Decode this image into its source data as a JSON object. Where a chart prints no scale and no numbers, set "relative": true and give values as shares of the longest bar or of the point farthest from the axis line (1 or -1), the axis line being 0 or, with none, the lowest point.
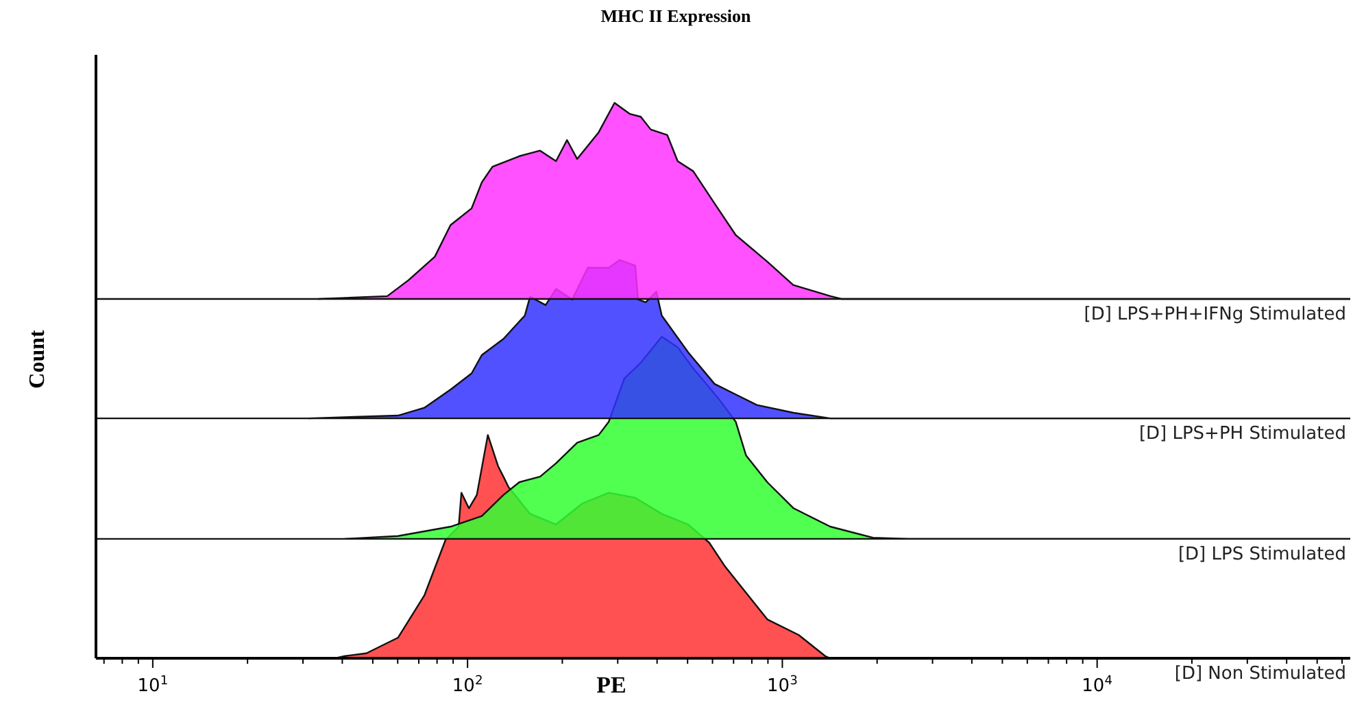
{
  "chart_data": {
    "type": "area",
    "title": "MHC II Expression",
    "xlabel": "PE",
    "ylabel": "Count",
    "relative": true,
    "log": "x",
    "grid": false,
    "legend": false,
    "marker": "none",
    "xlim": [
      6.6,
      63700
    ],
    "ref_lines": [
      {
        "axis": "y",
        "value": 0.215
      },
      {
        "axis": "y",
        "value": 0.432
      },
      {
        "axis": "y",
        "value": 0.647
      }
    ],
    "xticks": [
      {
        "value": 7,
        "label": null
      },
      {
        "value": 8,
        "label": null
      },
      {
        "value": 9,
        "label": null
      },
      {
        "value": 10,
        "label": "10$^{1}$"
      },
      {
        "value": 20,
        "label": null
      },
      {
        "value": 30,
        "label": null
      },
      {
        "value": 40,
        "label": null
      },
      {
        "value": 50,
        "label": null
      },
      {
        "value": 60,
        "label": null
      },
      {
        "value": 70,
        "label": null
      },
      {
        "value": 80,
        "label": null
      },
      {
        "value": 90,
        "label": null
      },
      {
        "value": 100,
        "label": "10$^{2}$"
      },
      {
        "value": 200,
        "label": null
      },
      {
        "value": 300,
        "label": null
      },
      {
        "value": 400,
        "label": null
      },
      {
        "value": 500,
        "label": null
      },
      {
        "value": 600,
        "label": null
      },
      {
        "value": 700,
        "label": null
      },
      {
        "value": 800,
        "label": null
      },
      {
        "value": 900,
        "label": null
      },
      {
        "value": 1000,
        "label": "10$^{3}$"
      },
      {
        "value": 2000,
        "label": null
      },
      {
        "value": 3000,
        "label": null
      },
      {
        "value": 4000,
        "label": null
      },
      {
        "value": 5000,
        "label": null
      },
      {
        "value": 6000,
        "label": null
      },
      {
        "value": 7000,
        "label": null
      },
      {
        "value": 8000,
        "label": null
      },
      {
        "value": 9000,
        "label": null
      },
      {
        "value": 10000,
        "label": "10$^{4}$"
      },
      {
        "value": 20000,
        "label": null
      },
      {
        "value": 30000,
        "label": null
      },
      {
        "value": 40000,
        "label": null
      },
      {
        "value": 50000,
        "label": null
      },
      {
        "value": 60000,
        "label": null
      }
    ],
    "series": [
      {
        "name": "[D] Non Stimulated",
        "color": "#ff3333",
        "x": [
          6.6,
          38,
          40.8,
          47.7,
          60.1,
          72.9,
          85.1,
          93.7,
          95.6,
          101,
          107,
          116,
          125,
          130,
          135,
          158,
          191,
          232,
          281,
          341,
          414,
          502,
          586,
          658,
          767,
          896,
          1127,
          1368,
          1420,
          63700
        ],
        "values": [
          0,
          0,
          0.004,
          0.009,
          0.037,
          0.113,
          0.213,
          0.237,
          0.298,
          0.27,
          0.294,
          0.402,
          0.346,
          0.327,
          0.308,
          0.26,
          0.241,
          0.279,
          0.298,
          0.289,
          0.26,
          0.241,
          0.208,
          0.165,
          0.118,
          0.07,
          0.042,
          0.004,
          0,
          0
        ]
      },
      {
        "name": "[D] LPS Stimulated",
        "color": "#33ff33",
        "x": [
          40.8,
          60.1,
          88.4,
          111,
          130,
          146,
          170,
          191,
          223,
          261,
          281,
          315,
          355,
          414,
          465,
          521,
          632,
          711,
          767,
          896,
          1086,
          1420,
          1941,
          2518,
          63700
        ],
        "values": [
          0.215,
          0.22,
          0.237,
          0.256,
          0.294,
          0.317,
          0.327,
          0.351,
          0.388,
          0.402,
          0.426,
          0.504,
          0.532,
          0.579,
          0.56,
          0.522,
          0.465,
          0.426,
          0.365,
          0.317,
          0.27,
          0.237,
          0.217,
          0.215,
          0.215
        ]
      },
      {
        "name": "[D] LPS+PH Stimulated",
        "color": "#3333ff",
        "x": [
          31.2,
          60.1,
          72.9,
          88.4,
          103,
          111,
          130,
          152,
          158,
          177,
          191,
          215,
          241,
          281,
          304,
          341,
          348,
          368,
          398,
          414,
          502,
          609,
          711,
          830,
          1086,
          1420,
          63700
        ],
        "values": [
          0.432,
          0.437,
          0.451,
          0.484,
          0.513,
          0.546,
          0.575,
          0.617,
          0.651,
          0.636,
          0.665,
          0.646,
          0.703,
          0.703,
          0.717,
          0.707,
          0.646,
          0.641,
          0.66,
          0.617,
          0.551,
          0.494,
          0.475,
          0.456,
          0.442,
          0.432,
          0.432
        ]
      },
      {
        "name": "[D] LPS+PH+IFNg Stimulated",
        "color": "#ff33ff",
        "x": [
          33.6,
          55.6,
          65,
          78.7,
          88.3,
          103,
          111,
          120,
          146,
          170,
          191,
          207,
          223,
          261,
          293,
          328,
          355,
          382,
          431,
          465,
          521,
          609,
          711,
          896,
          1083,
          1422,
          1540,
          63700
        ],
        "values": [
          0.647,
          0.652,
          0.681,
          0.723,
          0.78,
          0.81,
          0.857,
          0.885,
          0.904,
          0.914,
          0.895,
          0.933,
          0.899,
          0.947,
          1,
          0.98,
          0.975,
          0.952,
          0.942,
          0.895,
          0.877,
          0.819,
          0.762,
          0.714,
          0.672,
          0.652,
          0.647,
          0.647
        ]
      }
    ]
  }
}
